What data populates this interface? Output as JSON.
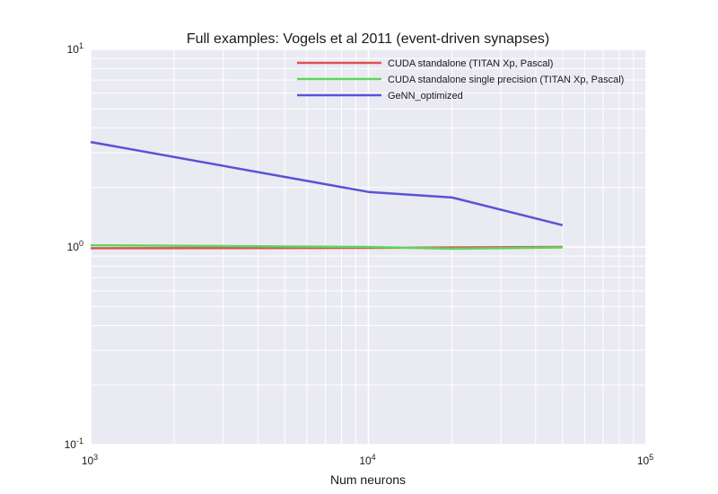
{
  "chart_data": {
    "type": "line",
    "title": "Full examples: Vogels et al 2011 (event-driven synapses)",
    "xlabel": "Num neurons",
    "ylabel": "",
    "x_scale": "log",
    "y_scale": "log",
    "xlim": [
      1000,
      100000
    ],
    "ylim": [
      0.1,
      10
    ],
    "grid": true,
    "legend_position": "top-right",
    "x_major_ticks": [
      {
        "value": 1000,
        "base": "10",
        "exp": "3"
      },
      {
        "value": 10000,
        "base": "10",
        "exp": "4"
      },
      {
        "value": 100000,
        "base": "10",
        "exp": "5"
      }
    ],
    "y_major_ticks": [
      {
        "value": 0.1,
        "base": "10",
        "exp": "-1"
      },
      {
        "value": 1,
        "base": "10",
        "exp": "0"
      },
      {
        "value": 10,
        "base": "10",
        "exp": "1"
      }
    ],
    "series": [
      {
        "name": "CUDA standalone (TITAN Xp, Pascal)",
        "color": "#d9534f",
        "x": [
          1000,
          10000,
          20000,
          50000
        ],
        "y": [
          0.985,
          0.99,
          0.995,
          1.0
        ]
      },
      {
        "name": "CUDA standalone single precision (TITAN Xp, Pascal)",
        "color": "#5cd65c",
        "x": [
          1000,
          10000,
          20000,
          50000
        ],
        "y": [
          1.02,
          1.0,
          0.98,
          0.995
        ]
      },
      {
        "name": "GeNN_optimized",
        "color": "#5a52d6",
        "x": [
          1000,
          10000,
          20000,
          50000
        ],
        "y": [
          3.4,
          1.9,
          1.78,
          1.29
        ]
      }
    ]
  }
}
